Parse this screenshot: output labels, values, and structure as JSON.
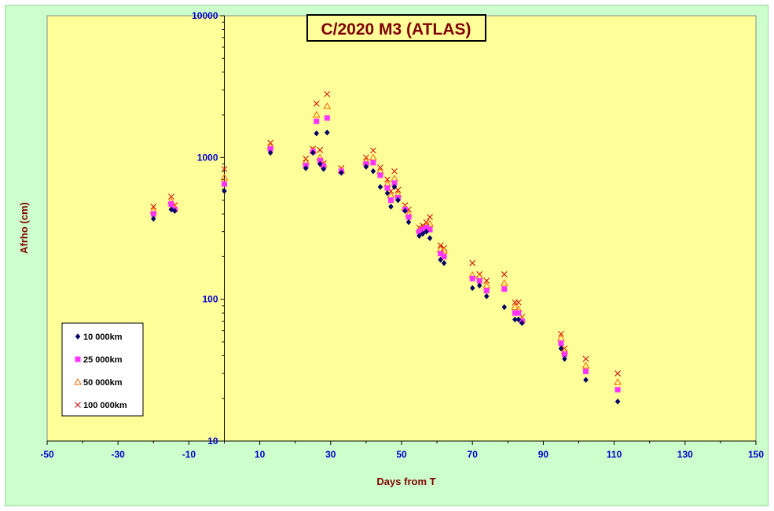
{
  "chart_data": {
    "type": "scatter",
    "title": "C/2020 M3 (ATLAS)",
    "xlabel": "Days from  T",
    "ylabel": "Afrho (cm)",
    "xlim": [
      -50,
      150
    ],
    "ylim": [
      10,
      10000
    ],
    "y_scale": "log",
    "x_ticks": [
      -50,
      -30,
      -10,
      10,
      30,
      50,
      70,
      90,
      110,
      130,
      150
    ],
    "y_ticks": [
      10,
      100,
      1000,
      10000
    ],
    "grid": false,
    "legend_position": "bottom-left",
    "colors": {
      "plot_background": "#ffff99",
      "outer_background": "#ccffcc",
      "tick_labels": "#0000cc",
      "axis_titles": "#800000"
    },
    "series": [
      {
        "name": "10 000km",
        "marker": "diamond",
        "color": "#000066",
        "points": [
          [
            -20,
            370
          ],
          [
            -15,
            430
          ],
          [
            -14,
            420
          ],
          [
            0,
            580
          ],
          [
            13,
            1080
          ],
          [
            23,
            840
          ],
          [
            25,
            1080
          ],
          [
            26,
            1480
          ],
          [
            27,
            900
          ],
          [
            28,
            830
          ],
          [
            29,
            1500
          ],
          [
            33,
            780
          ],
          [
            40,
            860
          ],
          [
            42,
            800
          ],
          [
            44,
            620
          ],
          [
            46,
            560
          ],
          [
            47,
            450
          ],
          [
            48,
            620
          ],
          [
            49,
            500
          ],
          [
            51,
            420
          ],
          [
            52,
            350
          ],
          [
            55,
            280
          ],
          [
            56,
            290
          ],
          [
            57,
            300
          ],
          [
            58,
            270
          ],
          [
            61,
            190
          ],
          [
            62,
            180
          ],
          [
            70,
            120
          ],
          [
            72,
            125
          ],
          [
            74,
            105
          ],
          [
            79,
            88
          ],
          [
            82,
            72
          ],
          [
            83,
            72
          ],
          [
            84,
            68
          ],
          [
            95,
            45
          ],
          [
            96,
            38
          ],
          [
            102,
            27
          ],
          [
            111,
            19
          ]
        ]
      },
      {
        "name": "25 000km",
        "marker": "square",
        "color": "#ff33ff",
        "points": [
          [
            -20,
            400
          ],
          [
            -15,
            470
          ],
          [
            -14,
            430
          ],
          [
            0,
            650
          ],
          [
            13,
            1150
          ],
          [
            23,
            880
          ],
          [
            25,
            1100
          ],
          [
            26,
            1800
          ],
          [
            27,
            950
          ],
          [
            28,
            870
          ],
          [
            29,
            1900
          ],
          [
            33,
            800
          ],
          [
            40,
            900
          ],
          [
            42,
            920
          ],
          [
            44,
            750
          ],
          [
            46,
            610
          ],
          [
            47,
            500
          ],
          [
            48,
            660
          ],
          [
            49,
            520
          ],
          [
            51,
            430
          ],
          [
            52,
            380
          ],
          [
            55,
            300
          ],
          [
            56,
            310
          ],
          [
            57,
            320
          ],
          [
            58,
            310
          ],
          [
            61,
            210
          ],
          [
            62,
            200
          ],
          [
            70,
            140
          ],
          [
            72,
            135
          ],
          [
            74,
            115
          ],
          [
            79,
            118
          ],
          [
            82,
            80
          ],
          [
            83,
            80
          ],
          [
            84,
            70
          ],
          [
            95,
            49
          ],
          [
            96,
            41
          ],
          [
            102,
            31
          ],
          [
            111,
            23
          ]
        ]
      },
      {
        "name": "50 000km",
        "marker": "triangle",
        "color": "#ff6600",
        "points": [
          [
            -20,
            420
          ],
          [
            -15,
            490
          ],
          [
            -14,
            440
          ],
          [
            0,
            720
          ],
          [
            13,
            1200
          ],
          [
            23,
            930
          ],
          [
            25,
            1120
          ],
          [
            26,
            2000
          ],
          [
            27,
            1000
          ],
          [
            28,
            890
          ],
          [
            29,
            2300
          ],
          [
            33,
            810
          ],
          [
            40,
            940
          ],
          [
            42,
            1000
          ],
          [
            44,
            800
          ],
          [
            46,
            650
          ],
          [
            47,
            540
          ],
          [
            48,
            710
          ],
          [
            49,
            550
          ],
          [
            51,
            440
          ],
          [
            52,
            400
          ],
          [
            55,
            310
          ],
          [
            56,
            320
          ],
          [
            57,
            330
          ],
          [
            58,
            340
          ],
          [
            61,
            225
          ],
          [
            62,
            220
          ],
          [
            70,
            148
          ],
          [
            72,
            145
          ],
          [
            74,
            125
          ],
          [
            79,
            130
          ],
          [
            82,
            88
          ],
          [
            83,
            85
          ],
          [
            84,
            72
          ],
          [
            95,
            53
          ],
          [
            96,
            43
          ],
          [
            102,
            34
          ],
          [
            111,
            26
          ]
        ]
      },
      {
        "name": "100 000km",
        "marker": "x",
        "color": "#cc0000",
        "points": [
          [
            -20,
            450
          ],
          [
            -15,
            530
          ],
          [
            -14,
            460
          ],
          [
            0,
            830
          ],
          [
            13,
            1270
          ],
          [
            23,
            980
          ],
          [
            25,
            1150
          ],
          [
            26,
            2400
          ],
          [
            27,
            1130
          ],
          [
            28,
            910
          ],
          [
            29,
            2800
          ],
          [
            33,
            840
          ],
          [
            40,
            1000
          ],
          [
            42,
            1120
          ],
          [
            44,
            850
          ],
          [
            46,
            700
          ],
          [
            47,
            580
          ],
          [
            48,
            800
          ],
          [
            49,
            590
          ],
          [
            51,
            460
          ],
          [
            52,
            430
          ],
          [
            55,
            320
          ],
          [
            56,
            330
          ],
          [
            57,
            350
          ],
          [
            58,
            380
          ],
          [
            61,
            240
          ],
          [
            62,
            230
          ],
          [
            70,
            180
          ],
          [
            72,
            150
          ],
          [
            74,
            135
          ],
          [
            79,
            150
          ],
          [
            82,
            95
          ],
          [
            83,
            95
          ],
          [
            84,
            75
          ],
          [
            95,
            57
          ],
          [
            96,
            45
          ],
          [
            102,
            38
          ],
          [
            111,
            30
          ]
        ]
      }
    ]
  }
}
